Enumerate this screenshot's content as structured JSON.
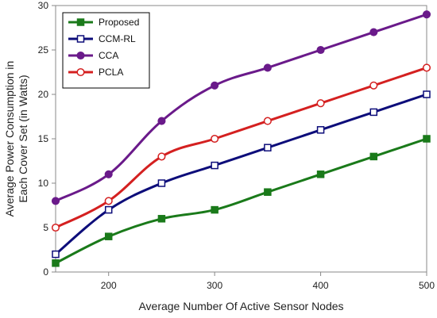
{
  "chart_data": {
    "type": "line",
    "title": "",
    "xlabel": "Average Number Of Active Sensor Nodes",
    "ylabel_lines": [
      "Average Power Consumption in",
      "Each Cover Set (in Watts)"
    ],
    "xlim": [
      150,
      500
    ],
    "ylim": [
      0,
      30
    ],
    "xticks": [
      200,
      300,
      400,
      500
    ],
    "yticks": [
      0,
      5,
      10,
      15,
      20,
      25,
      30
    ],
    "grid": false,
    "legend_position": "top-left",
    "x": [
      150,
      200,
      250,
      300,
      350,
      400,
      450,
      500
    ],
    "series": [
      {
        "name": "Proposed",
        "color": "#1a7a1a",
        "marker": "filled-square",
        "values": [
          1,
          4,
          6,
          7,
          9,
          11,
          13,
          15
        ]
      },
      {
        "name": "CCM-RL",
        "color": "#0d0d7a",
        "marker": "open-square",
        "values": [
          2,
          7,
          10,
          12,
          14,
          16,
          18,
          20
        ]
      },
      {
        "name": "CCA",
        "color": "#6a1a8a",
        "marker": "filled-circle",
        "values": [
          8,
          11,
          17,
          21,
          23,
          25,
          27,
          29
        ]
      },
      {
        "name": "PCLA",
        "color": "#d42020",
        "marker": "open-circle",
        "values": [
          5,
          8,
          13,
          15,
          17,
          19,
          21,
          23
        ]
      }
    ]
  }
}
